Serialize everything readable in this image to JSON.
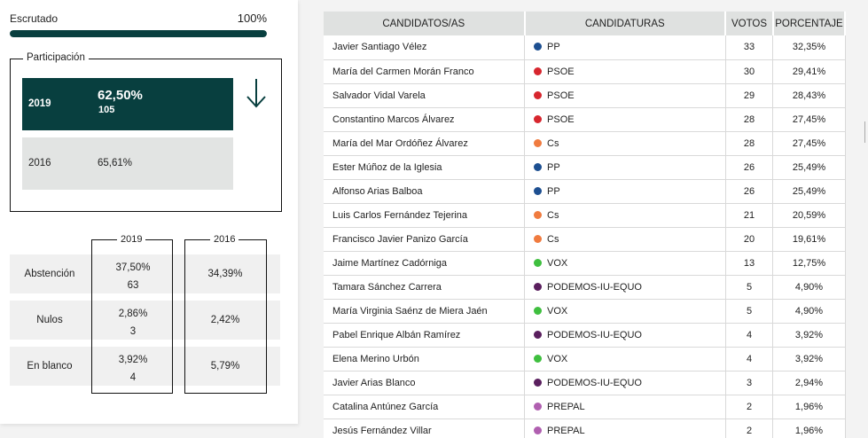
{
  "escrutado": {
    "label": "Escrutado",
    "value": "100%",
    "fraction": 1.0,
    "color": "#083f3f"
  },
  "participacion": {
    "title": "Participación",
    "current": {
      "year": "2019",
      "pct": "62,50%",
      "count": "105"
    },
    "previous": {
      "year": "2016",
      "pct": "65,61%"
    },
    "trend_icon": "arrow-down-icon"
  },
  "summary": {
    "col_2019": "2019",
    "col_2016": "2016",
    "rows": [
      {
        "label": "Abstención",
        "pct_2019": "37,50%",
        "count_2019": "63",
        "pct_2016": "34,39%"
      },
      {
        "label": "Nulos",
        "pct_2019": "2,86%",
        "count_2019": "3",
        "pct_2016": "2,42%"
      },
      {
        "label": "En blanco",
        "pct_2019": "3,92%",
        "count_2019": "4",
        "pct_2016": "5,79%"
      }
    ]
  },
  "table": {
    "headers": [
      "CANDIDATOS/AS",
      "CANDIDATURAS",
      "VOTOS",
      "PORCENTAJE"
    ],
    "rows": [
      {
        "name": "Javier Santiago Vélez",
        "party": "PP",
        "color": "#1d4f91",
        "votes": "33",
        "pct": "32,35%"
      },
      {
        "name": "María del Carmen Morán Franco",
        "party": "PSOE",
        "color": "#d7262e",
        "votes": "30",
        "pct": "29,41%"
      },
      {
        "name": "Salvador Vidal Varela",
        "party": "PSOE",
        "color": "#d7262e",
        "votes": "29",
        "pct": "28,43%"
      },
      {
        "name": "Constantino Marcos Álvarez",
        "party": "PSOE",
        "color": "#d7262e",
        "votes": "28",
        "pct": "27,45%"
      },
      {
        "name": "María del Mar Ordóñez Álvarez",
        "party": "Cs",
        "color": "#f07b3f",
        "votes": "28",
        "pct": "27,45%"
      },
      {
        "name": "Ester Múñoz de la Iglesia",
        "party": "PP",
        "color": "#1d4f91",
        "votes": "26",
        "pct": "25,49%"
      },
      {
        "name": "Alfonso Arias Balboa",
        "party": "PP",
        "color": "#1d4f91",
        "votes": "26",
        "pct": "25,49%"
      },
      {
        "name": "Luis Carlos Fernández Tejerina",
        "party": "Cs",
        "color": "#f07b3f",
        "votes": "21",
        "pct": "20,59%"
      },
      {
        "name": "Francisco Javier Panizo García",
        "party": "Cs",
        "color": "#f07b3f",
        "votes": "20",
        "pct": "19,61%"
      },
      {
        "name": "Jaime Martínez Cadórniga",
        "party": "VOX",
        "color": "#3fbf3f",
        "votes": "13",
        "pct": "12,75%"
      },
      {
        "name": "Tamara Sánchez Carrera",
        "party": "PODEMOS-IU-EQUO",
        "color": "#5a1f5e",
        "votes": "5",
        "pct": "4,90%"
      },
      {
        "name": "María Virginia Saénz de Miera Jaén",
        "party": "VOX",
        "color": "#3fbf3f",
        "votes": "5",
        "pct": "4,90%"
      },
      {
        "name": "Pabel Enrique Albán Ramírez",
        "party": "PODEMOS-IU-EQUO",
        "color": "#5a1f5e",
        "votes": "4",
        "pct": "3,92%"
      },
      {
        "name": "Elena Merino Urbón",
        "party": "VOX",
        "color": "#3fbf3f",
        "votes": "4",
        "pct": "3,92%"
      },
      {
        "name": "Javier Arias Blanco",
        "party": "PODEMOS-IU-EQUO",
        "color": "#5a1f5e",
        "votes": "3",
        "pct": "2,94%"
      },
      {
        "name": "Catalina Antúnez García",
        "party": "PREPAL",
        "color": "#b05fb0",
        "votes": "2",
        "pct": "1,96%"
      },
      {
        "name": "Jesús Fernández Villar",
        "party": "PREPAL",
        "color": "#b05fb0",
        "votes": "2",
        "pct": "1,96%"
      }
    ]
  }
}
